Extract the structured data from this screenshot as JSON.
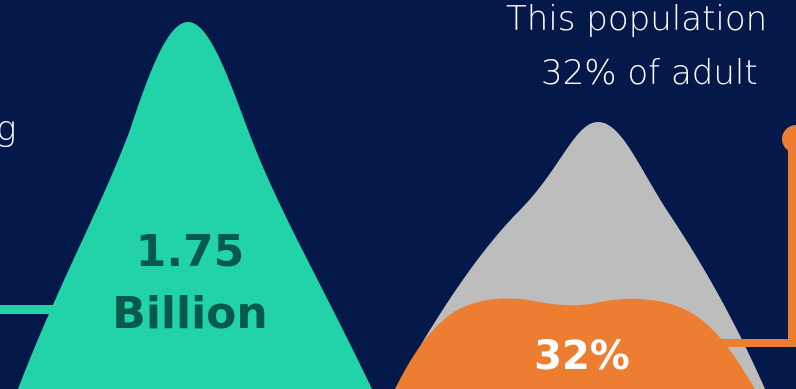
{
  "colors": {
    "background": "#05184a",
    "teal": "#22d3aa",
    "teal_text": "#075a4b",
    "gray": "#bdbdbd",
    "orange": "#ed7d31",
    "white": "#ffffff"
  },
  "left_caption_fragment": "g",
  "right_caption": {
    "line1": "This population",
    "line2": "32% of adult"
  },
  "teal_stat": {
    "line1": "1.75",
    "line2": "Billion"
  },
  "orange_stat": {
    "value": "32%"
  }
}
